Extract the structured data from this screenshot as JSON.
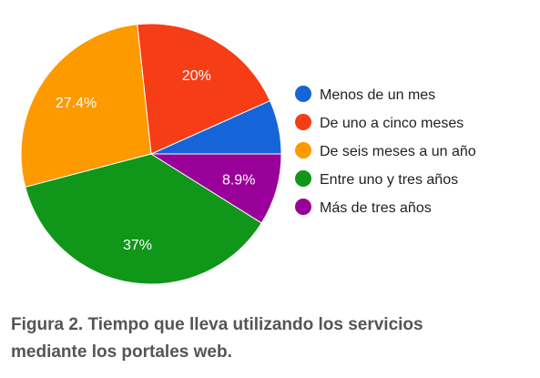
{
  "chart_data": {
    "type": "pie",
    "title": "",
    "series": [
      {
        "label": "Menos de un mes",
        "value": 6.7,
        "data_label": "",
        "color": "#1565d8"
      },
      {
        "label": "De uno a cinco meses",
        "value": 20,
        "data_label": "20%",
        "color": "#f63d15"
      },
      {
        "label": "De seis meses a un año",
        "value": 27.4,
        "data_label": "27.4%",
        "color": "#fc9a00"
      },
      {
        "label": "Entre uno y tres años",
        "value": 37,
        "data_label": "37%",
        "color": "#109618"
      },
      {
        "label": "Más de tres años",
        "value": 8.9,
        "data_label": "8.9%",
        "color": "#990099"
      }
    ],
    "legend_position": "right"
  },
  "caption": {
    "line1": "Figura 2. Tiempo que lleva utilizando los servicios",
    "line2": "mediante los portales web."
  }
}
